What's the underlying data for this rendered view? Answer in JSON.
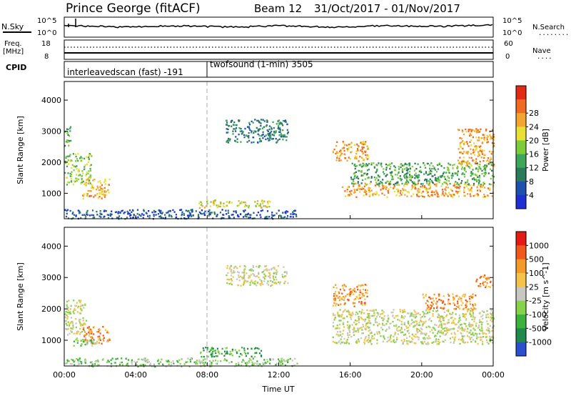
{
  "header": {
    "title": "Prince George (fitACF)",
    "beam": "Beam 12",
    "dates": "31/Oct/2017 - 01/Nov/2017"
  },
  "strips": {
    "nsky": {
      "label": "N.Sky",
      "ticks_left": [
        "10^5",
        "10^0"
      ],
      "ticks_right": [
        "10^5",
        "10^0"
      ],
      "right_label": "N.Search",
      "right_legend": "........"
    },
    "freq": {
      "label": "Freq.",
      "unit": "[MHz]",
      "ticks_left": [
        "18",
        "8"
      ],
      "ticks_right": [
        "60",
        "0"
      ],
      "right_label": "Nave",
      "right_legend": "...."
    },
    "cpid": {
      "label": "CPID",
      "segments": [
        {
          "text": "interleavedscan (fast) -191",
          "start_h": 0,
          "end_h": 8
        },
        {
          "text": "twofsound (1-min) 3505",
          "start_h": 8,
          "end_h": 24
        }
      ]
    }
  },
  "chart_data": [
    {
      "type": "heatmap",
      "title": "",
      "xlabel": "",
      "ylabel": "Slant Range [km]",
      "xlim": [
        0,
        24
      ],
      "ylim": [
        180,
        4600
      ],
      "x_ticks": [
        "00:00",
        "04:00",
        "08:00",
        "12:00",
        "16:00",
        "20:00",
        "00:00"
      ],
      "y_ticks": [
        "1000",
        "2000",
        "3000",
        "4000"
      ],
      "colorbar": {
        "label": "Power [dB]",
        "ticks": [
          "4",
          "8",
          "12",
          "16",
          "20",
          "24",
          "28"
        ],
        "colors": [
          "#1f2fd6",
          "#1e50b0",
          "#2c7a5c",
          "#3ea65a",
          "#7fcc3a",
          "#e8e035",
          "#f2a530",
          "#f06a22",
          "#e22b14"
        ]
      },
      "regions": [
        {
          "t": [
            0.0,
            0.35
          ],
          "r": [
            2500,
            3200
          ],
          "level": 3
        },
        {
          "t": [
            0.0,
            1.5
          ],
          "r": [
            1300,
            2300
          ],
          "level": 4
        },
        {
          "t": [
            1.0,
            2.5
          ],
          "r": [
            850,
            1500
          ],
          "level": 6
        },
        {
          "t": [
            9.0,
            12.5
          ],
          "r": [
            2650,
            3400
          ],
          "level": 2
        },
        {
          "t": [
            7.5,
            11.5
          ],
          "r": [
            550,
            800
          ],
          "level": 5
        },
        {
          "t": [
            15.0,
            17.0
          ],
          "r": [
            2050,
            2700
          ],
          "level": 6
        },
        {
          "t": [
            15.5,
            24.0
          ],
          "r": [
            900,
            1350
          ],
          "level": 6
        },
        {
          "t": [
            16.0,
            24.0
          ],
          "r": [
            1300,
            2000
          ],
          "level": 3
        },
        {
          "t": [
            22.0,
            24.0
          ],
          "r": [
            1900,
            3100
          ],
          "level": 6
        },
        {
          "t": [
            0.0,
            13.0
          ],
          "r": [
            200,
            500
          ],
          "level": 1
        }
      ]
    },
    {
      "type": "heatmap",
      "title": "",
      "xlabel": "Time UT",
      "ylabel": "Slant Range [km]",
      "xlim": [
        0,
        24
      ],
      "ylim": [
        180,
        4600
      ],
      "x_ticks": [
        "00:00",
        "04:00",
        "08:00",
        "12:00",
        "16:00",
        "20:00",
        "00:00"
      ],
      "y_ticks": [
        "1000",
        "2000",
        "3000",
        "4000"
      ],
      "colorbar": {
        "label": "Velocity [m s^-1]",
        "ticks": [
          "1000",
          "500",
          "100",
          "25",
          "-25",
          "-100",
          "-500",
          "-1000"
        ],
        "colors": [
          "#2c4fd0",
          "#1f8a4a",
          "#3cb13c",
          "#86d34a",
          "#c8c8c0",
          "#f5c34a",
          "#f39a2a",
          "#ef5a1c",
          "#e51a12"
        ]
      },
      "regions": [
        {
          "t": [
            0.0,
            1.2
          ],
          "r": [
            1200,
            2300
          ],
          "level": 4
        },
        {
          "t": [
            1.0,
            2.5
          ],
          "r": [
            900,
            1500
          ],
          "level": 6
        },
        {
          "t": [
            0.5,
            2.0
          ],
          "r": [
            850,
            1100
          ],
          "level": 3
        },
        {
          "t": [
            9.0,
            12.5
          ],
          "r": [
            2750,
            3400
          ],
          "level": 4
        },
        {
          "t": [
            7.5,
            11.0
          ],
          "r": [
            500,
            800
          ],
          "level": 2
        },
        {
          "t": [
            15.0,
            17.0
          ],
          "r": [
            2100,
            2800
          ],
          "level": 6
        },
        {
          "t": [
            15.0,
            24.0
          ],
          "r": [
            900,
            2000
          ],
          "level": 4
        },
        {
          "t": [
            20.0,
            23.0
          ],
          "r": [
            2000,
            2500
          ],
          "level": 6
        },
        {
          "t": [
            23.0,
            24.0
          ],
          "r": [
            2700,
            3100
          ],
          "level": 6
        },
        {
          "t": [
            0.0,
            13.0
          ],
          "r": [
            180,
            450
          ],
          "level": 3
        }
      ]
    }
  ]
}
